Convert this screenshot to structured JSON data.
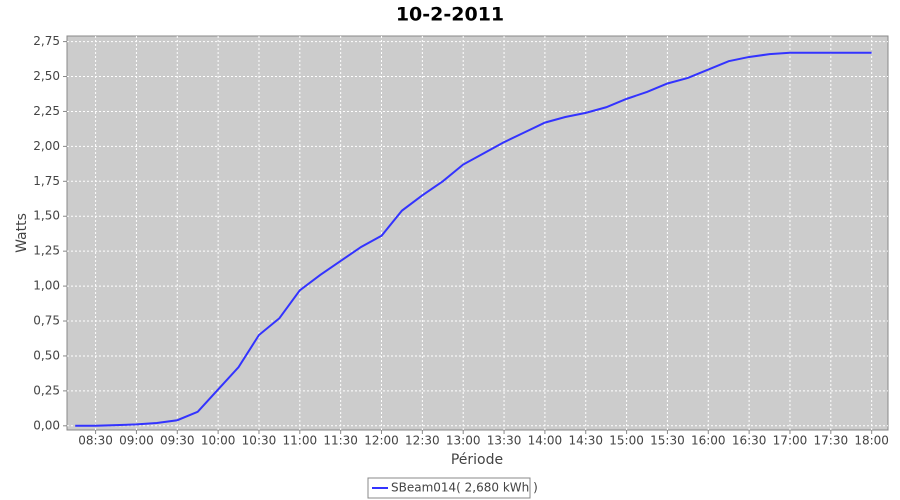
{
  "chart_data": {
    "type": "line",
    "title": "10-2-2011",
    "x_label": "Période",
    "y_label": "Watts",
    "x": [
      "08:15",
      "08:30",
      "09:00",
      "09:15",
      "09:30",
      "09:45",
      "10:00",
      "10:15",
      "10:30",
      "10:45",
      "11:00",
      "11:15",
      "11:30",
      "11:45",
      "12:00",
      "12:15",
      "12:30",
      "12:45",
      "13:00",
      "13:15",
      "13:30",
      "13:45",
      "14:00",
      "14:15",
      "14:30",
      "14:45",
      "15:00",
      "15:15",
      "15:30",
      "15:45",
      "16:00",
      "16:15",
      "16:30",
      "16:45",
      "17:00",
      "17:30",
      "18:00"
    ],
    "series": [
      {
        "name": "SBeam014( 2,680 kWh )",
        "color": "#3333ff",
        "values": [
          0,
          0,
          0.01,
          0.02,
          0.04,
          0.1,
          0.26,
          0.42,
          0.65,
          0.77,
          0.97,
          1.08,
          1.18,
          1.28,
          1.36,
          1.54,
          1.65,
          1.75,
          1.87,
          1.95,
          2.03,
          2.1,
          2.17,
          2.21,
          2.24,
          2.28,
          2.34,
          2.39,
          2.45,
          2.49,
          2.55,
          2.61,
          2.64,
          2.66,
          2.67,
          2.67,
          2.67
        ]
      }
    ],
    "xlim": [
      "08:09",
      "18:12"
    ],
    "xticks": [
      "08:30",
      "09:00",
      "09:30",
      "10:00",
      "10:30",
      "11:00",
      "11:30",
      "12:00",
      "12:30",
      "13:00",
      "13:30",
      "14:00",
      "14:30",
      "15:00",
      "15:30",
      "16:00",
      "16:30",
      "17:00",
      "17:30",
      "18:00"
    ],
    "ylim": [
      -0.03,
      2.79
    ],
    "yticks": [
      {
        "value": 0,
        "label": "0,00"
      },
      {
        "value": 0.25,
        "label": "0,25"
      },
      {
        "value": 0.5,
        "label": "0,50"
      },
      {
        "value": 0.75,
        "label": "0,75"
      },
      {
        "value": 1,
        "label": "1,00"
      },
      {
        "value": 1.25,
        "label": "1,25"
      },
      {
        "value": 1.5,
        "label": "1,50"
      },
      {
        "value": 1.75,
        "label": "1,75"
      },
      {
        "value": 2,
        "label": "2,00"
      },
      {
        "value": 2.25,
        "label": "2,25"
      },
      {
        "value": 2.5,
        "label": "2,50"
      },
      {
        "value": 2.75,
        "label": "2,75"
      }
    ],
    "grid": true
  }
}
